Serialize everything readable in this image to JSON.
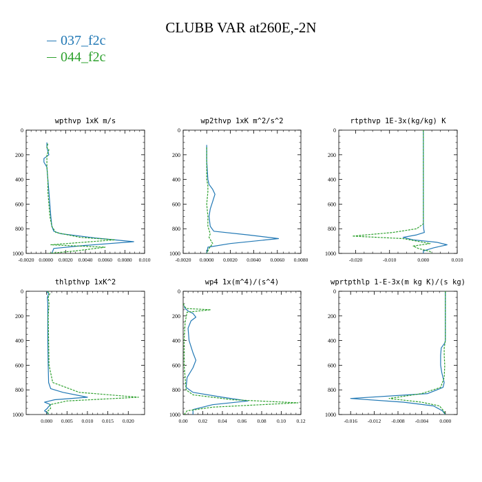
{
  "title": "CLUBB VAR at260E,-2N",
  "colors": {
    "s037": "#1f77b4",
    "s044": "#2ca02c"
  },
  "legend": [
    {
      "label": "037_f2c",
      "color": "#1f77b4"
    },
    {
      "label": "044_f2c",
      "color": "#2ca02c"
    }
  ],
  "chart_data": [
    {
      "type": "line",
      "title": "wpthvp  1xK m/s",
      "xlim": [
        -0.002,
        0.01
      ],
      "ylim": [
        1000,
        0
      ],
      "xticks": [
        -0.002,
        0.0,
        0.002,
        0.004,
        0.006,
        0.008,
        0.01
      ],
      "xtick_labels": [
        "-0.0020",
        "0.0000",
        "0.0020",
        "0.0040",
        "0.0060",
        "0.0080",
        "0.010"
      ],
      "yticks": [
        0,
        200,
        400,
        600,
        800,
        1000
      ],
      "ytick_labels": [
        "0",
        "200",
        "400",
        "600",
        "800",
        "1000"
      ],
      "series": [
        {
          "name": "037_f2c",
          "color": "#1f77b4",
          "dash": false,
          "x": [
            0.0001,
            0.0001,
            0.0002,
            0.0003,
            -0.0002,
            -0.0002,
            0.0001,
            0.0002,
            0.0003,
            0.0004,
            0.0005,
            0.0006,
            0.0008,
            0.0015,
            0.005,
            0.0089,
            0.004,
            0.0008,
            0.0006
          ],
          "y": [
            100,
            140,
            170,
            200,
            230,
            260,
            300,
            400,
            500,
            600,
            700,
            780,
            820,
            840,
            875,
            905,
            935,
            960,
            1000
          ]
        },
        {
          "name": "044_f2c",
          "color": "#2ca02c",
          "dash": true,
          "x": [
            0.0002,
            0.0001,
            0.0003,
            0.0001,
            0.0001,
            0.0001,
            0.0002,
            0.0002,
            0.0003,
            0.0004,
            0.0006,
            0.001,
            0.0035,
            0.007,
            0.0005,
            0.006,
            0.003,
            0.0003
          ],
          "y": [
            110,
            140,
            160,
            200,
            260,
            300,
            400,
            500,
            600,
            700,
            780,
            830,
            870,
            890,
            930,
            950,
            980,
            1000
          ]
        }
      ]
    },
    {
      "type": "line",
      "title": "wp2thvp  1xK m^2/s^2",
      "xlim": [
        -0.002,
        0.008
      ],
      "ylim": [
        1000,
        0
      ],
      "xticks": [
        -0.002,
        0.0,
        0.002,
        0.004,
        0.006,
        0.008
      ],
      "xtick_labels": [
        "-0.0020",
        "0.0000",
        "0.0020",
        "0.0040",
        "0.0060",
        "0.0080"
      ],
      "yticks": [
        0,
        200,
        400,
        600,
        800,
        1000
      ],
      "ytick_labels": [
        "0",
        "200",
        "400",
        "600",
        "800",
        "1000"
      ],
      "series": [
        {
          "name": "037_f2c",
          "color": "#1f77b4",
          "dash": false,
          "x": [
            0.0,
            0.0,
            0.0001,
            0.0002,
            0.0005,
            0.0007,
            0.0005,
            0.0003,
            0.0002,
            0.0003,
            0.0006,
            0.0035,
            0.0061,
            0.002,
            0.0001,
            0.0
          ],
          "y": [
            120,
            250,
            400,
            440,
            480,
            520,
            580,
            640,
            700,
            780,
            820,
            850,
            880,
            920,
            950,
            1000
          ]
        },
        {
          "name": "044_f2c",
          "color": "#2ca02c",
          "dash": true,
          "x": [
            0.0,
            0.0,
            0.0,
            0.0001,
            0.0001,
            0.0,
            0.0001,
            0.0001,
            0.0003,
            0.0002,
            0.0005,
            0.0002,
            0.0
          ],
          "y": [
            140,
            250,
            400,
            450,
            500,
            600,
            700,
            780,
            840,
            870,
            920,
            960,
            1000
          ]
        }
      ]
    },
    {
      "type": "line",
      "title": "rtpthvp  1E-3x(kg/kg) K",
      "xlim": [
        -0.025,
        0.01
      ],
      "ylim": [
        1000,
        0
      ],
      "xticks": [
        -0.02,
        -0.01,
        0.0,
        0.01
      ],
      "xtick_labels": [
        "-0.020",
        "-0.010",
        "0.000",
        "0.010"
      ],
      "yticks": [
        0,
        200,
        400,
        600,
        800,
        1000
      ],
      "ytick_labels": [
        "0",
        "200",
        "400",
        "600",
        "800",
        "1000"
      ],
      "series": [
        {
          "name": "037_f2c",
          "color": "#1f77b4",
          "dash": false,
          "x": [
            0.0,
            0.0,
            0.0,
            0.0,
            0.0,
            0.0,
            0.0001,
            0.0003,
            -0.002,
            -0.006,
            -0.003,
            0.004,
            0.007,
            0.003,
            0.0,
            0.0
          ],
          "y": [
            0,
            200,
            400,
            600,
            700,
            760,
            800,
            830,
            850,
            870,
            890,
            910,
            930,
            955,
            980,
            1000
          ]
        },
        {
          "name": "044_f2c",
          "color": "#2ca02c",
          "dash": true,
          "x": [
            0.0,
            0.0,
            0.0,
            0.0,
            0.0,
            0.0,
            -0.002,
            -0.009,
            -0.021,
            -0.006,
            -0.001,
            0.002,
            -0.003,
            -0.0015,
            0.002,
            0.0025
          ],
          "y": [
            0,
            200,
            400,
            600,
            700,
            760,
            800,
            830,
            860,
            880,
            905,
            920,
            940,
            960,
            985,
            1000
          ]
        }
      ]
    },
    {
      "type": "line",
      "title": "thlpthvp  1xK^2",
      "xlim": [
        -0.005,
        0.024
      ],
      "ylim": [
        1000,
        0
      ],
      "xticks": [
        0.0,
        0.005,
        0.01,
        0.015,
        0.02
      ],
      "xtick_labels": [
        "0.000",
        "0.005",
        "0.010",
        "0.015",
        "0.020"
      ],
      "yticks": [
        0,
        200,
        400,
        600,
        800,
        1000
      ],
      "ytick_labels": [
        "0",
        "200",
        "400",
        "600",
        "800",
        "1000"
      ],
      "series": [
        {
          "name": "037_f2c",
          "color": "#1f77b4",
          "dash": false,
          "x": [
            0.0,
            0.0005,
            0.0002,
            0.0003,
            0.0003,
            0.0003,
            0.0004,
            0.0005,
            0.001,
            0.004,
            0.01,
            0.002,
            -0.0005,
            0.001,
            0.0005,
            0.0002,
            -0.0005,
            0.0003,
            0.0004
          ],
          "y": [
            0,
            20,
            50,
            100,
            200,
            400,
            600,
            740,
            790,
            820,
            860,
            880,
            900,
            920,
            935,
            950,
            970,
            990,
            1000
          ]
        },
        {
          "name": "044_f2c",
          "color": "#2ca02c",
          "dash": true,
          "x": [
            0.0002,
            0.0008,
            0.0004,
            0.0006,
            0.0004,
            0.0005,
            0.0006,
            0.0015,
            0.008,
            0.0225,
            0.005,
            0.0008,
            0.001,
            0.0002,
            0.0005
          ],
          "y": [
            0,
            20,
            50,
            100,
            200,
            400,
            600,
            740,
            820,
            860,
            890,
            920,
            950,
            975,
            1000
          ]
        }
      ]
    },
    {
      "type": "line",
      "title": "wp4  1x(m^4)/(s^4)",
      "xlim": [
        0.0,
        0.12
      ],
      "ylim": [
        1000,
        0
      ],
      "xticks": [
        0.0,
        0.02,
        0.04,
        0.06,
        0.08,
        0.1,
        0.12
      ],
      "xtick_labels": [
        "0.00",
        "0.02",
        "0.04",
        "0.06",
        "0.08",
        "0.10",
        "0.12"
      ],
      "yticks": [
        0,
        200,
        400,
        600,
        800,
        1000
      ],
      "ytick_labels": [
        "0",
        "200",
        "400",
        "600",
        "800",
        "1000"
      ],
      "series": [
        {
          "name": "037_f2c",
          "color": "#1f77b4",
          "dash": false,
          "x": [
            0.001,
            0.002,
            0.005,
            0.01,
            0.013,
            0.008,
            0.005,
            0.006,
            0.01,
            0.013,
            0.01,
            0.004,
            0.003,
            0.01,
            0.04,
            0.066,
            0.03,
            0.01,
            0.01
          ],
          "y": [
            120,
            140,
            160,
            180,
            210,
            240,
            300,
            400,
            500,
            560,
            620,
            700,
            780,
            820,
            860,
            890,
            920,
            960,
            1000
          ]
        },
        {
          "name": "044_f2c",
          "color": "#2ca02c",
          "dash": true,
          "x": [
            0.0,
            0.002,
            0.004,
            0.028,
            0.004,
            0.002,
            0.001,
            0.001,
            0.001,
            0.002,
            0.003,
            0.01,
            0.05,
            0.117,
            0.03,
            0.004,
            0.001
          ],
          "y": [
            100,
            130,
            140,
            150,
            170,
            250,
            400,
            500,
            600,
            700,
            800,
            840,
            880,
            905,
            940,
            970,
            1000
          ]
        }
      ]
    },
    {
      "type": "line",
      "title": "wprtpthlp  1-E-3x(m kg K)/(s kg)",
      "xlim": [
        -0.018,
        0.002
      ],
      "ylim": [
        1000,
        0
      ],
      "xticks": [
        -0.016,
        -0.012,
        -0.008,
        -0.004,
        0.0
      ],
      "xtick_labels": [
        "-0.016",
        "-0.012",
        "-0.008",
        "-0.004",
        "0.000"
      ],
      "yticks": [
        0,
        200,
        400,
        600,
        800,
        1000
      ],
      "ytick_labels": [
        "0",
        "200",
        "400",
        "600",
        "800",
        "1000"
      ],
      "series": [
        {
          "name": "037_f2c",
          "color": "#1f77b4",
          "dash": false,
          "x": [
            0.0,
            0.0,
            0.0,
            -0.0001,
            -0.0007,
            -0.0008,
            -0.0008,
            -0.0006,
            -0.0002,
            -0.0004,
            -0.003,
            -0.016,
            -0.007,
            -0.002,
            -0.0005,
            0.0
          ],
          "y": [
            0,
            200,
            400,
            420,
            460,
            520,
            600,
            660,
            740,
            780,
            830,
            870,
            900,
            930,
            970,
            1000
          ]
        },
        {
          "name": "044_f2c",
          "color": "#2ca02c",
          "dash": true,
          "x": [
            0.0,
            0.0,
            0.0,
            -0.0002,
            -0.0002,
            -0.0001,
            -0.0002,
            -0.0008,
            -0.004,
            -0.0095,
            -0.004,
            -0.001,
            -0.0003,
            0.0
          ],
          "y": [
            0,
            200,
            400,
            460,
            520,
            600,
            700,
            780,
            830,
            870,
            900,
            930,
            970,
            1000
          ]
        }
      ]
    }
  ]
}
